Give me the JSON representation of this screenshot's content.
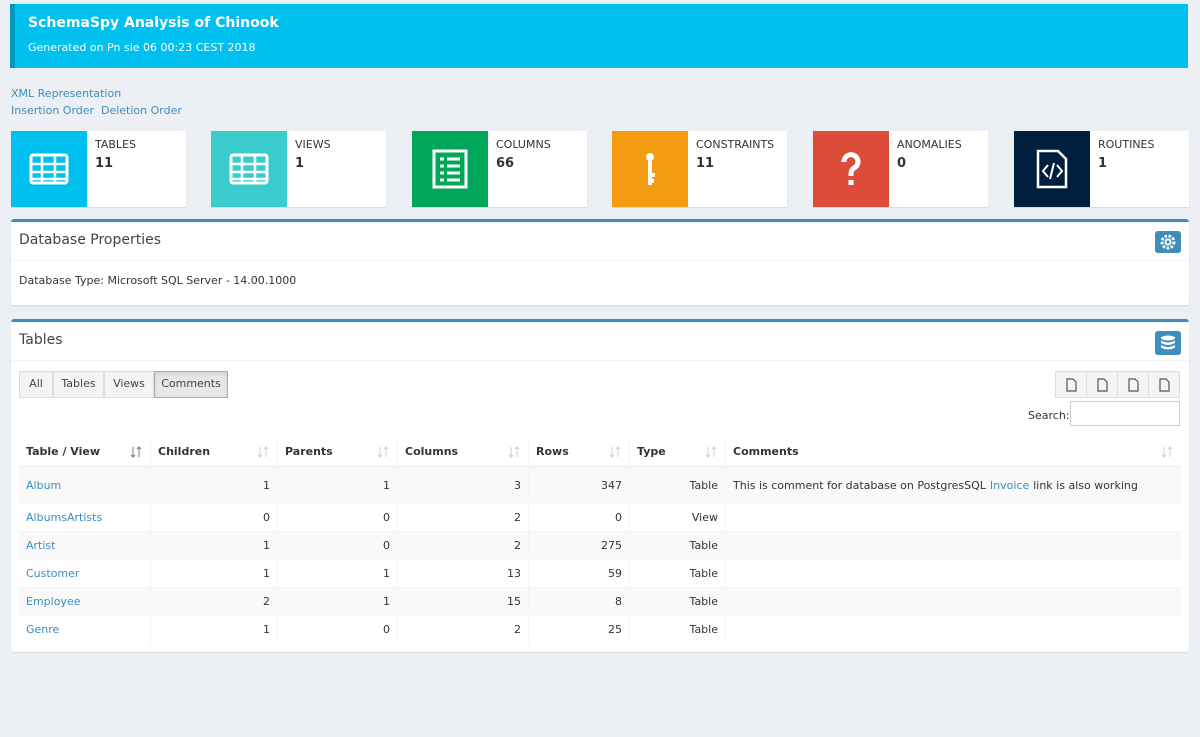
{
  "header": {
    "title": "SchemaSpy Analysis of Chinook",
    "generated": "Generated on Pn sie 06 00:23 CEST 2018"
  },
  "links": {
    "xml": "XML Representation",
    "insertion_order": "Insertion Order",
    "deletion_order": "Deletion Order"
  },
  "stats": [
    {
      "label": "TABLES",
      "value": 11,
      "color": "#00c0ef"
    },
    {
      "label": "VIEWS",
      "value": 1,
      "color": "#39cccc"
    },
    {
      "label": "COLUMNS",
      "value": 66,
      "color": "#00a65a"
    },
    {
      "label": "CONSTRAINTS",
      "value": 11,
      "color": "#f39c12"
    },
    {
      "label": "ANOMALIES",
      "value": 0,
      "color": "#dd4b39"
    },
    {
      "label": "ROUTINES",
      "value": 1,
      "color": "#001f3f"
    }
  ],
  "database_properties": {
    "title": "Database Properties",
    "database_type": "Database Type: Microsoft SQL Server - 14.00.1000"
  },
  "tables": {
    "title": "Tables",
    "filters": [
      "All",
      "Tables",
      "Views",
      "Comments"
    ],
    "active_filter": 3,
    "search_label": "Search:",
    "columns": [
      "Table / View",
      "Children",
      "Parents",
      "Columns",
      "Rows",
      "Type",
      "Comments"
    ],
    "rows": [
      {
        "name": "Album",
        "children": 1,
        "parents": 1,
        "columns": 3,
        "rows": 347,
        "type": "Table",
        "comments": {
          "text": "This is comment for database on PostgresSQL",
          "link": "Invoice",
          "text_after": "link is also working"
        }
      },
      {
        "name": "AlbumsArtists",
        "children": 0,
        "parents": 0,
        "columns": 2,
        "rows": 0,
        "type": "View"
      },
      {
        "name": "Artist",
        "children": 1,
        "parents": 0,
        "columns": 2,
        "rows": 275,
        "type": "Table"
      },
      {
        "name": "Customer",
        "children": 1,
        "parents": 1,
        "columns": 13,
        "rows": 59,
        "type": "Table"
      },
      {
        "name": "Employee",
        "children": 2,
        "parents": 1,
        "columns": 15,
        "rows": 8,
        "type": "Table"
      },
      {
        "name": "Genre",
        "children": 1,
        "parents": 0,
        "columns": 2,
        "rows": 25,
        "type": "Table"
      }
    ]
  }
}
